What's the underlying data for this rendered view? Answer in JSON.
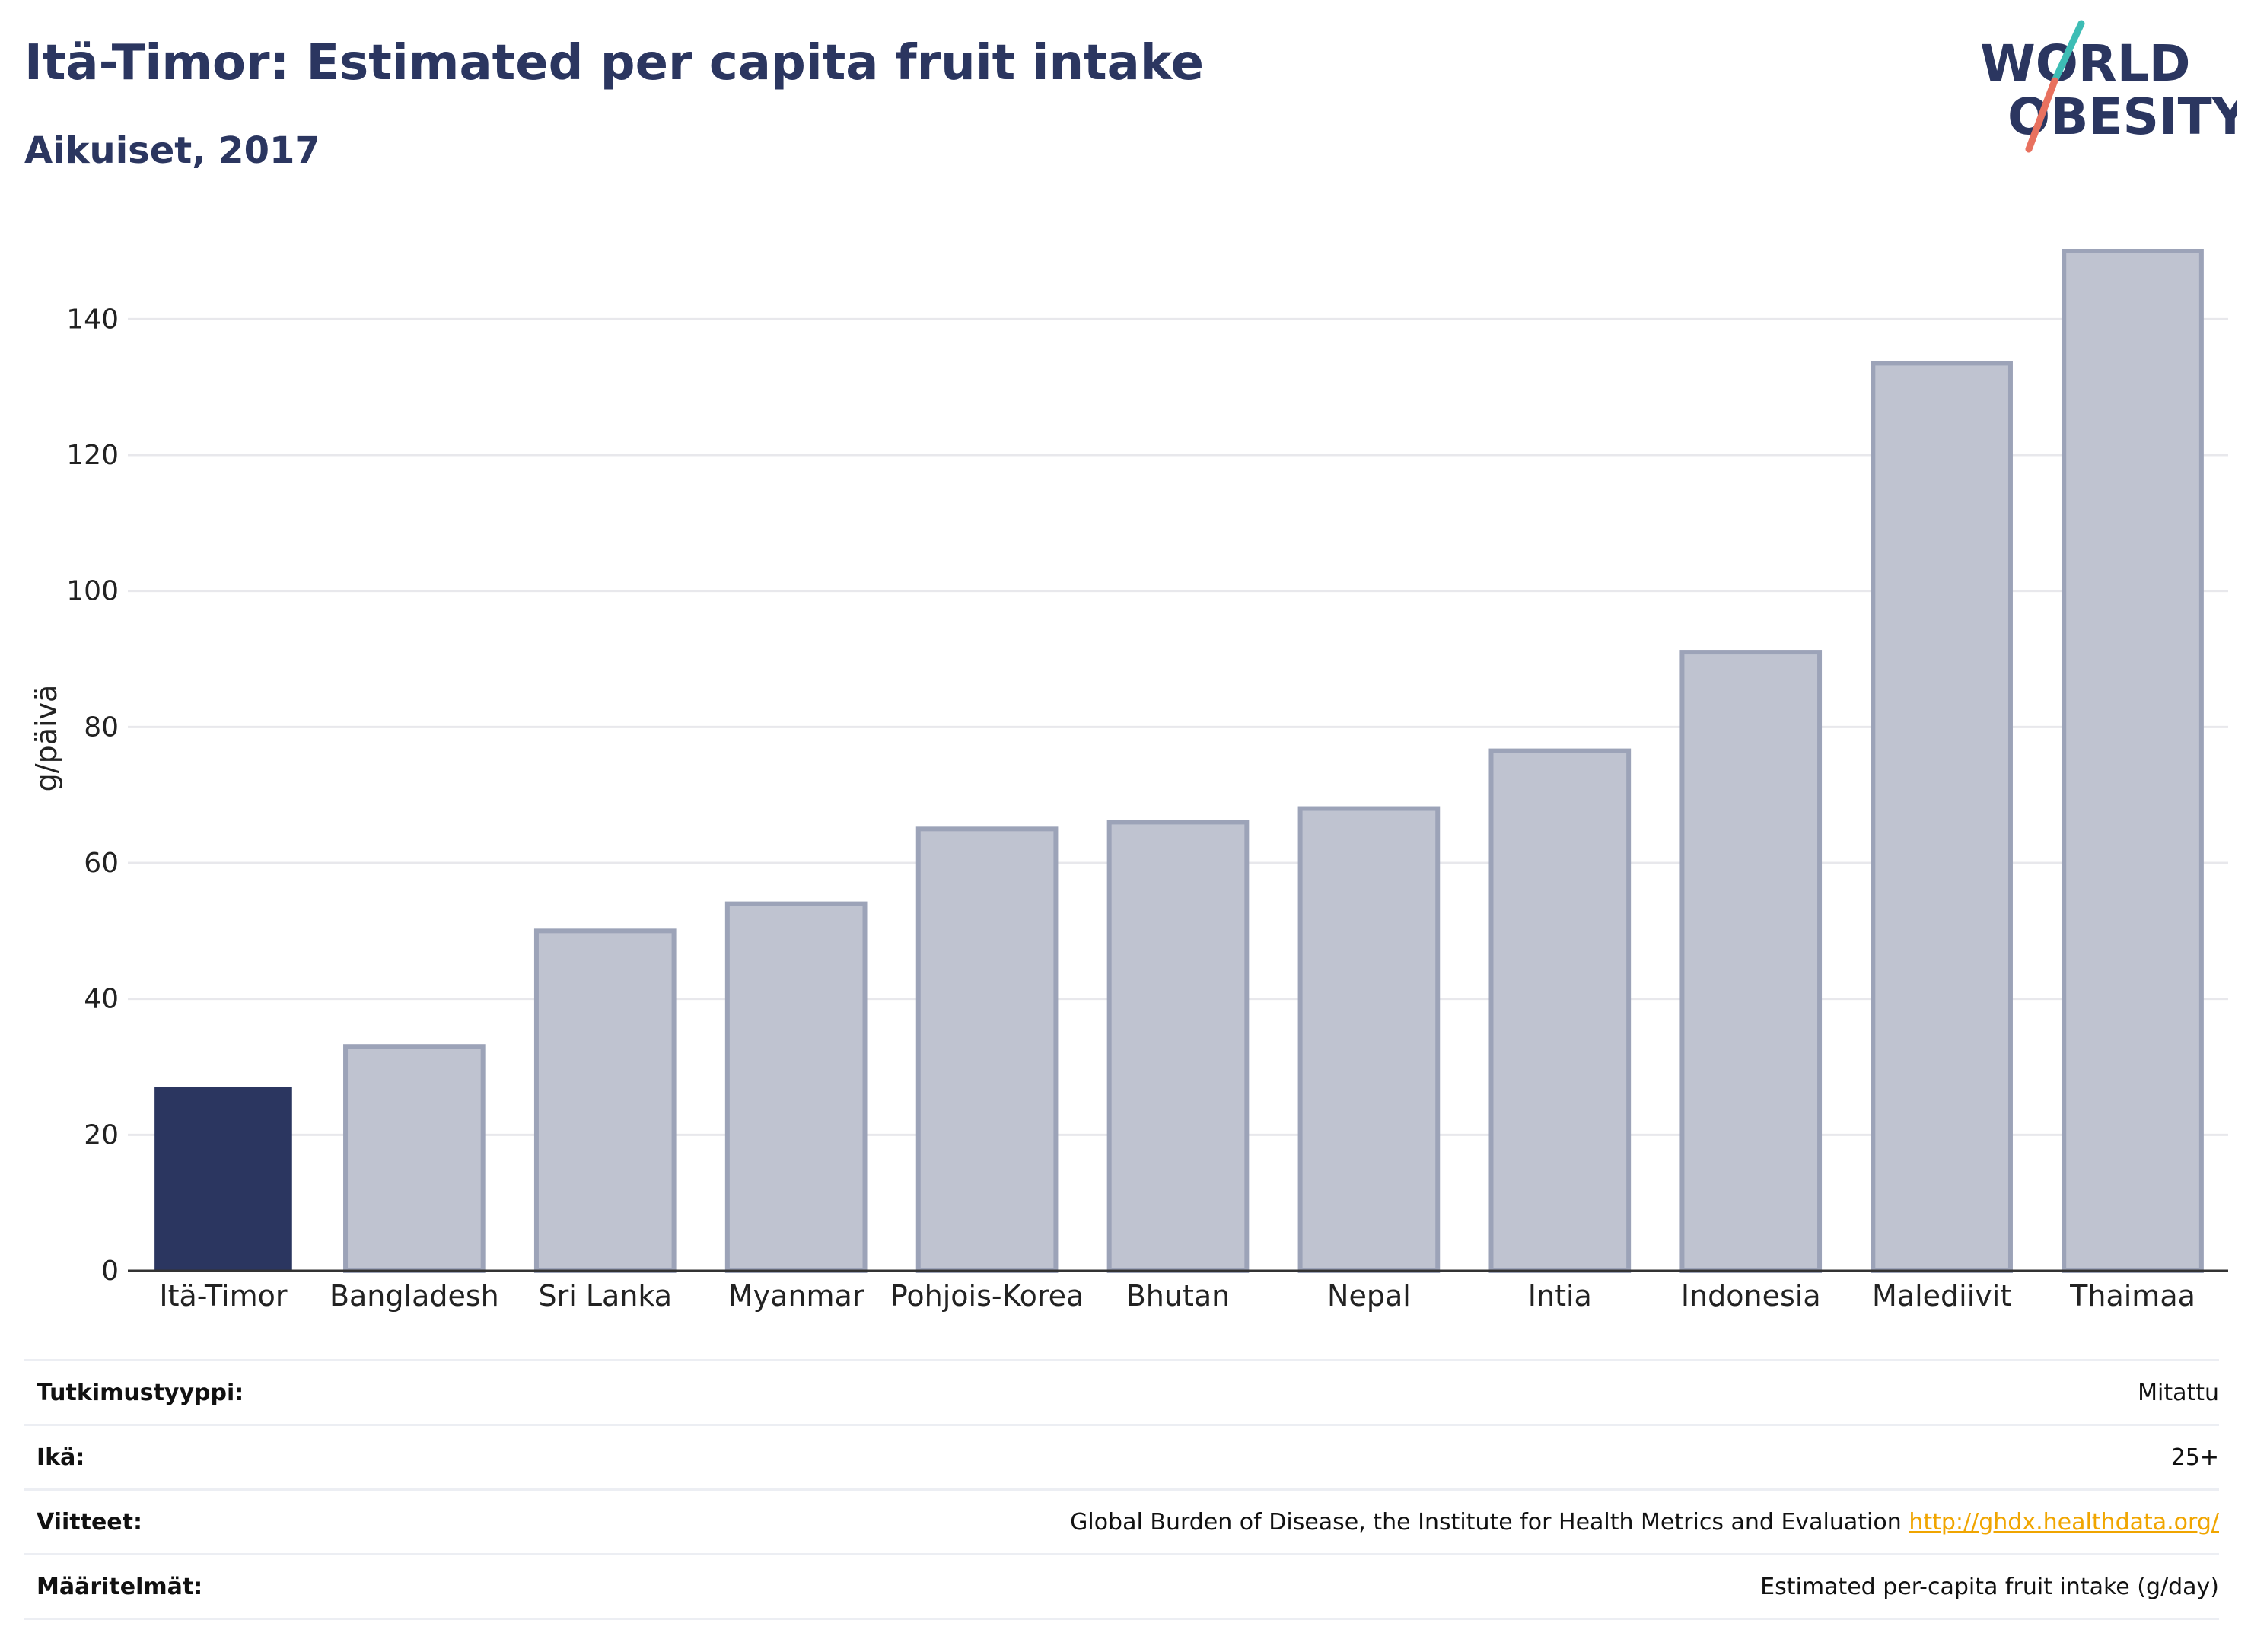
{
  "header": {
    "title": "Itä-Timor: Estimated per capita fruit intake",
    "subtitle": "Aikuiset, 2017"
  },
  "logo": {
    "line1": "WORLD",
    "line2": "OBESITY",
    "colors": {
      "text": "#2b3660",
      "slash_teal": "#3dbdb5",
      "slash_red": "#e8715f"
    }
  },
  "chart_data": {
    "type": "bar",
    "categories": [
      "Itä-Timor",
      "Bangladesh",
      "Sri Lanka",
      "Myanmar",
      "Pohjois-Korea",
      "Bhutan",
      "Nepal",
      "Intia",
      "Indonesia",
      "Malediivit",
      "Thaimaa"
    ],
    "values": [
      27,
      33,
      50,
      54,
      65,
      66,
      68,
      76.5,
      91,
      133.5,
      150
    ],
    "highlight": "Itä-Timor",
    "ylabel": "g/päivä",
    "ylim": [
      0,
      150
    ],
    "yticks": [
      0,
      20,
      40,
      60,
      80,
      100,
      120,
      140
    ],
    "grid": true,
    "colors": {
      "highlight": "#2b3660",
      "other_fill": "#bfc3d0",
      "other_stroke": "#9ca3b8",
      "grid": "#e8e8ec"
    }
  },
  "meta": {
    "rows": [
      {
        "key": "Tutkimustyyppi:",
        "value": "Mitattu"
      },
      {
        "key": "Ikä:",
        "value": "25+"
      },
      {
        "key": "Viitteet:",
        "value": "Global Burden of Disease, the Institute for Health Metrics and Evaluation",
        "link": "http://ghdx.healthdata.org/"
      },
      {
        "key": "Määritelmät:",
        "value": "Estimated per-capita fruit intake (g/day)"
      }
    ]
  }
}
